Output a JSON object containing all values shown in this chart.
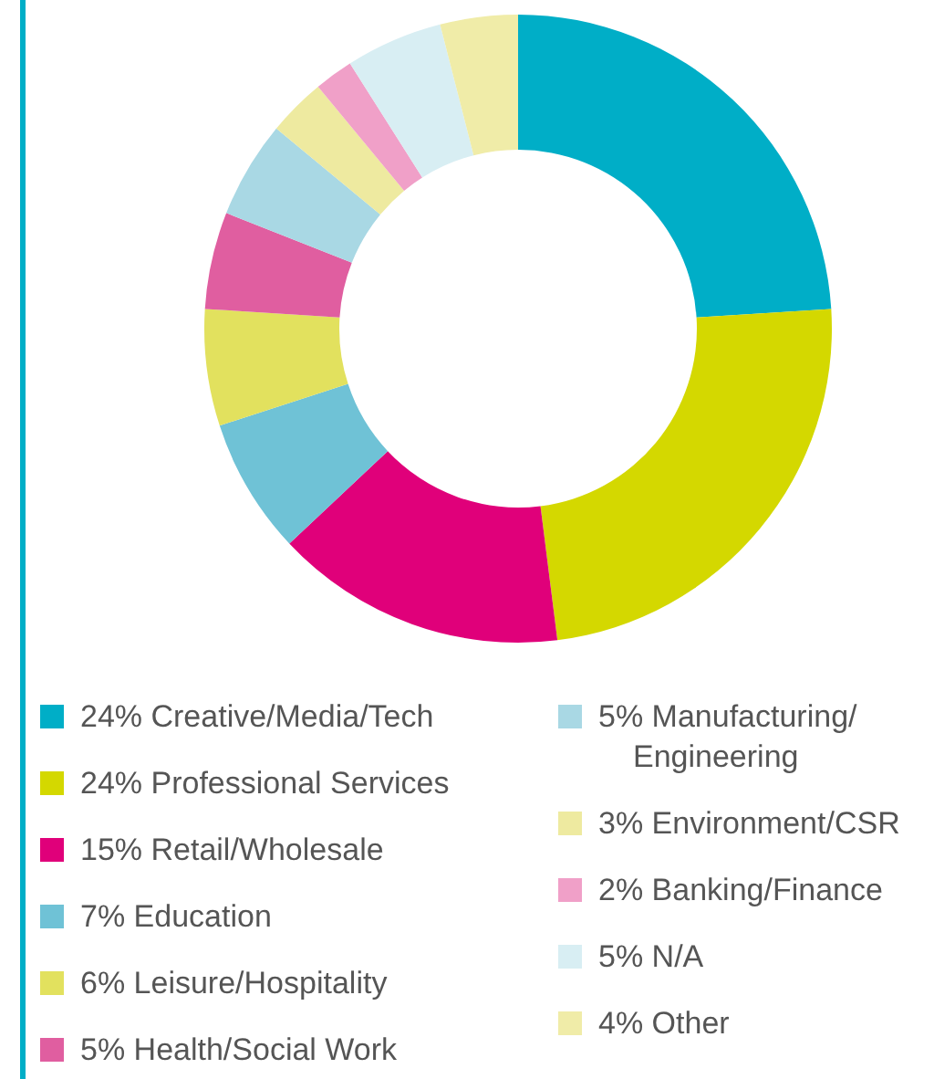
{
  "chart_data": {
    "type": "donut",
    "categories": [
      "Creative/Media/Tech",
      "Professional Services",
      "Retail/Wholesale",
      "Education",
      "Leisure/Hospitality",
      "Health/Social Work",
      "Manufacturing/Engineering",
      "Environment/CSR",
      "Banking/Finance",
      "N/A",
      "Other"
    ],
    "values": [
      24,
      24,
      15,
      7,
      6,
      5,
      5,
      3,
      2,
      5,
      4
    ],
    "value_labels": [
      "24%",
      "24%",
      "15%",
      "7%",
      "6%",
      "5%",
      "5%",
      "3%",
      "2%",
      "5%",
      "4%"
    ],
    "colors": [
      "#00aec7",
      "#d4d800",
      "#e0007a",
      "#6fc2d6",
      "#e2e15e",
      "#e05ea0",
      "#a9d8e4",
      "#eeeaa0",
      "#f0a0c8",
      "#d8eef3",
      "#f0eca8"
    ],
    "legend": "bottom"
  }
}
